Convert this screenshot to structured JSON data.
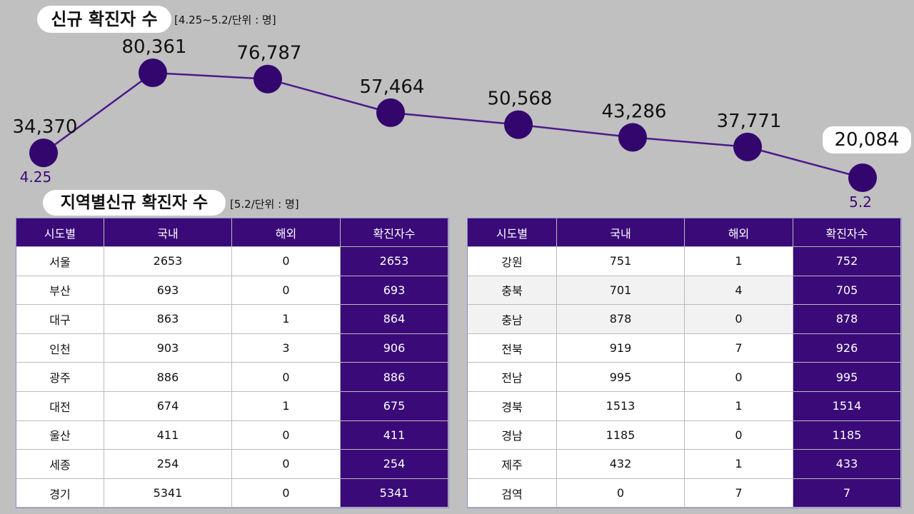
{
  "chart_data": {
    "type": "line",
    "title": "신규 확진자 수",
    "subtitle": "[4.25~5.2/단위 : 명]",
    "categories": [
      "4.25",
      null,
      null,
      null,
      null,
      null,
      null,
      "5.2"
    ],
    "values": [
      34370,
      80361,
      76787,
      57464,
      50568,
      43286,
      37771,
      20084
    ],
    "value_labels": [
      "34,370",
      "80,361",
      "76,787",
      "57,464",
      "50,568",
      "43,286",
      "37,771",
      "20,084"
    ],
    "color": "#33066e",
    "line_color": "#4b1a8a"
  },
  "tables_title": "지역별신규 확진자 수",
  "tables_subtitle": "[5.2/단위 : 명]",
  "tables": [
    {
      "header": [
        "시도별",
        "국내",
        "해외",
        "확진자수"
      ],
      "rows": [
        [
          "서울",
          2653,
          0,
          2653
        ],
        [
          "부산",
          693,
          0,
          693
        ],
        [
          "대구",
          863,
          1,
          864
        ],
        [
          "인천",
          903,
          3,
          906
        ],
        [
          "광주",
          886,
          0,
          886
        ],
        [
          "대전",
          674,
          1,
          675
        ],
        [
          "울산",
          411,
          0,
          411
        ],
        [
          "세종",
          254,
          0,
          254
        ],
        [
          "경기",
          5341,
          0,
          5341
        ]
      ]
    },
    {
      "header": [
        "시도별",
        "국내",
        "해외",
        "확진자수"
      ],
      "rows": [
        [
          "강원",
          751,
          1,
          752
        ],
        [
          "충북",
          701,
          4,
          705
        ],
        [
          "충남",
          878,
          0,
          878
        ],
        [
          "전북",
          919,
          7,
          926
        ],
        [
          "전남",
          995,
          0,
          995
        ],
        [
          "경북",
          1513,
          1,
          1514
        ],
        [
          "경남",
          1185,
          0,
          1185
        ],
        [
          "제주",
          432,
          1,
          433
        ],
        [
          "검역",
          0,
          7,
          7
        ]
      ]
    }
  ]
}
